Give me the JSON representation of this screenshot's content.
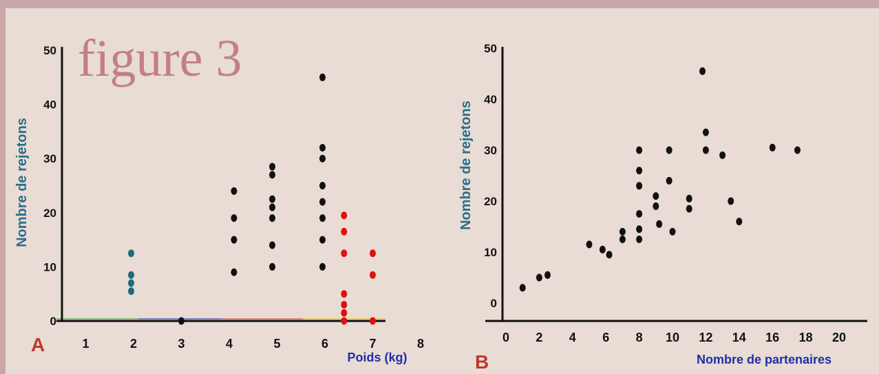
{
  "figure_title": "figure 3",
  "colors": {
    "background": "#e8dcd4",
    "title": "#c47e86",
    "axis_label": "#2a6e8a",
    "xlabel": "#1f2fa8",
    "panel_letter": "#c0392b",
    "black_points": "#111111",
    "red_points": "#e01010",
    "teal_points": "#1e6a7a",
    "baseline_colors": [
      "#2a9d2a",
      "#1f2fa8",
      "#c0392b",
      "#e0c020"
    ]
  },
  "chart_data": [
    {
      "type": "scatter",
      "panel": "A",
      "title": "",
      "xlabel": "Poids (kg)",
      "ylabel": "Nombre de rejetons",
      "xlim": [
        0.3,
        8.3
      ],
      "ylim": [
        0,
        50
      ],
      "xticks": [
        1,
        2,
        3,
        4,
        5,
        6,
        7,
        8
      ],
      "yticks": [
        0,
        10,
        20,
        30,
        40,
        50
      ],
      "grid": false,
      "series": [
        {
          "color": "#111111",
          "points": [
            [
              3.0,
              0
            ],
            [
              4.1,
              24
            ],
            [
              4.1,
              19
            ],
            [
              4.1,
              15
            ],
            [
              4.1,
              9
            ],
            [
              4.9,
              28.5
            ],
            [
              4.9,
              27
            ],
            [
              4.9,
              22.5
            ],
            [
              4.9,
              21
            ],
            [
              4.9,
              19
            ],
            [
              4.9,
              14
            ],
            [
              4.9,
              10
            ],
            [
              5.95,
              45
            ],
            [
              5.95,
              32
            ],
            [
              5.95,
              30
            ],
            [
              5.95,
              25
            ],
            [
              5.95,
              22
            ],
            [
              5.95,
              19
            ],
            [
              5.95,
              15
            ],
            [
              5.95,
              10
            ]
          ]
        },
        {
          "color": "#e01010",
          "points": [
            [
              6.4,
              19.5
            ],
            [
              6.4,
              16.5
            ],
            [
              6.4,
              12.5
            ],
            [
              6.4,
              5
            ],
            [
              6.4,
              3
            ],
            [
              6.4,
              1.5
            ],
            [
              6.4,
              0
            ],
            [
              7.0,
              12.5
            ],
            [
              7.0,
              8.5
            ],
            [
              7.0,
              0
            ]
          ]
        },
        {
          "color": "#1e6a7a",
          "points": [
            [
              1.95,
              12.5
            ],
            [
              1.95,
              8.5
            ],
            [
              1.95,
              7
            ],
            [
              1.95,
              5.5
            ]
          ]
        }
      ]
    },
    {
      "type": "scatter",
      "panel": "B",
      "title": "",
      "xlabel": "Nombre de partenaires",
      "ylabel": "Nombre de rejetons",
      "xlim": [
        -0.5,
        21.5
      ],
      "ylim": [
        0,
        50
      ],
      "xticks": [
        0,
        2,
        4,
        6,
        8,
        10,
        12,
        14,
        16,
        18,
        20
      ],
      "yticks": [
        0,
        10,
        20,
        30,
        40,
        50
      ],
      "grid": false,
      "series": [
        {
          "color": "#111111",
          "points": [
            [
              1,
              3
            ],
            [
              2,
              5
            ],
            [
              2.5,
              5.5
            ],
            [
              5,
              11.5
            ],
            [
              5.8,
              10.5
            ],
            [
              6.2,
              9.5
            ],
            [
              7,
              14
            ],
            [
              7,
              12.5
            ],
            [
              8,
              30
            ],
            [
              8,
              26
            ],
            [
              8,
              23
            ],
            [
              8,
              17.5
            ],
            [
              8,
              14.5
            ],
            [
              8,
              12.5
            ],
            [
              9,
              21
            ],
            [
              9,
              19
            ],
            [
              9.2,
              15.5
            ],
            [
              9.8,
              30
            ],
            [
              9.8,
              24
            ],
            [
              10,
              14
            ],
            [
              11,
              20.5
            ],
            [
              11,
              18.5
            ],
            [
              11.8,
              45.5
            ],
            [
              12,
              33.5
            ],
            [
              12,
              30
            ],
            [
              13,
              29
            ],
            [
              14,
              16
            ],
            [
              16,
              30.5
            ],
            [
              17.5,
              30
            ],
            [
              13.5,
              20
            ]
          ]
        }
      ]
    }
  ]
}
